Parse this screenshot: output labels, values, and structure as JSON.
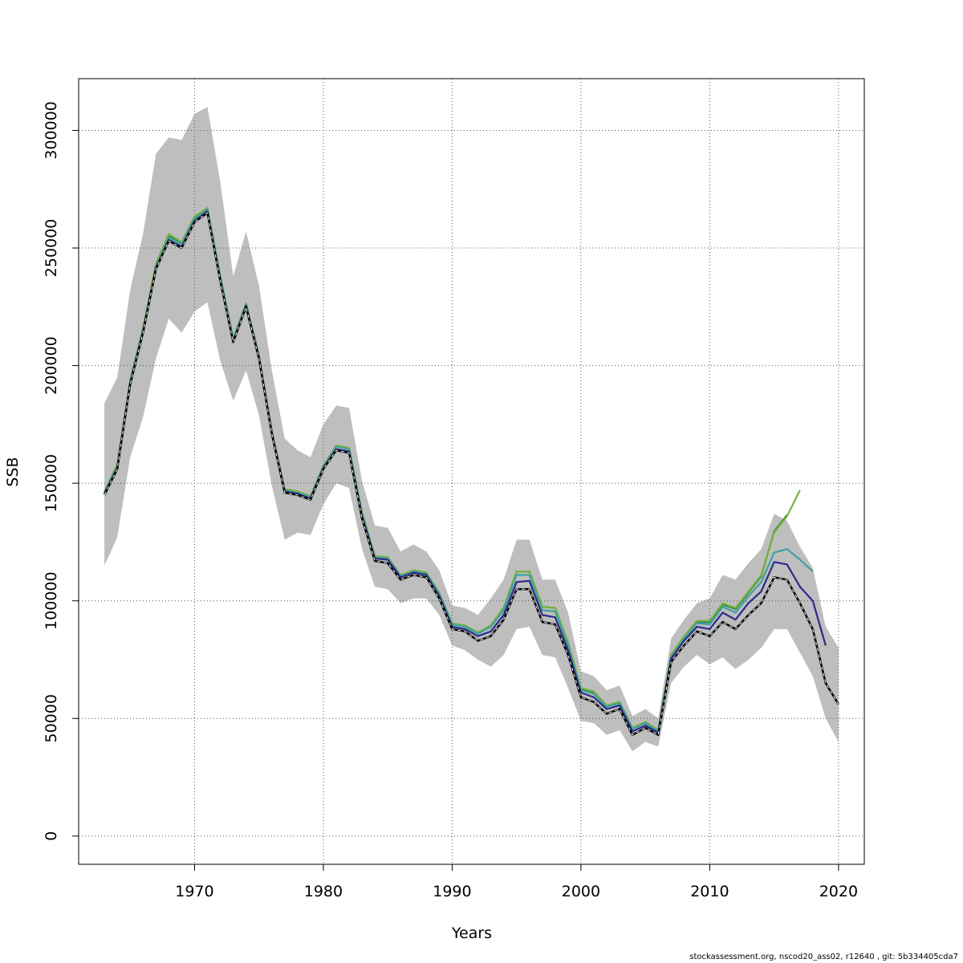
{
  "chart_data": {
    "type": "line",
    "title": "",
    "xlabel": "Years",
    "ylabel": "SSB",
    "xlim": [
      1961,
      2022
    ],
    "ylim": [
      -12000,
      322000
    ],
    "xticks": [
      1970,
      1980,
      1990,
      2000,
      2010,
      2020
    ],
    "yticks": [
      0,
      50000,
      100000,
      150000,
      200000,
      250000,
      300000
    ],
    "grid": true,
    "colors": {
      "band": "#bebebe",
      "grid": "#555555",
      "base_line": "#000000",
      "retro_lines": [
        "#2c2b8a",
        "#3ea2a0",
        "#7bb03c",
        "#1e8a4a",
        "#8fc8e4",
        "#2f3fb8",
        "#d4cf3a"
      ]
    },
    "band": {
      "x": [
        1963,
        1964,
        1965,
        1966,
        1967,
        1968,
        1969,
        1970,
        1971,
        1972,
        1973,
        1974,
        1975,
        1976,
        1977,
        1978,
        1979,
        1980,
        1981,
        1982,
        1983,
        1984,
        1985,
        1986,
        1987,
        1988,
        1989,
        1990,
        1991,
        1992,
        1993,
        1994,
        1995,
        1996,
        1997,
        1998,
        1999,
        2000,
        2001,
        2002,
        2003,
        2004,
        2005,
        2006,
        2007,
        2008,
        2009,
        2010,
        2011,
        2012,
        2013,
        2014,
        2015,
        2016,
        2017,
        2018,
        2019,
        2020
      ],
      "upper": [
        184000,
        195000,
        232000,
        256000,
        290000,
        297000,
        296000,
        307000,
        310000,
        278000,
        238000,
        257000,
        234000,
        198000,
        169000,
        164000,
        161000,
        175000,
        183000,
        182000,
        151000,
        132000,
        131000,
        121000,
        124000,
        121000,
        113000,
        98000,
        97000,
        94000,
        101000,
        109000,
        126000,
        126000,
        109000,
        109000,
        95000,
        70000,
        68000,
        62000,
        64000,
        51000,
        54000,
        50000,
        84000,
        92000,
        99000,
        101000,
        111000,
        109000,
        116000,
        122000,
        137000,
        134000,
        123000,
        114000,
        89000,
        80000
      ],
      "lower": [
        115000,
        127000,
        161000,
        178000,
        203000,
        220000,
        214000,
        223000,
        227000,
        202000,
        185000,
        198000,
        179000,
        149000,
        126000,
        129000,
        128000,
        141000,
        150000,
        148000,
        122000,
        106000,
        105000,
        99000,
        101000,
        101000,
        94000,
        81000,
        79000,
        75000,
        72000,
        77000,
        88000,
        89000,
        77000,
        76000,
        63000,
        49000,
        48000,
        43000,
        45000,
        36000,
        40000,
        38000,
        65000,
        72000,
        77000,
        73000,
        76000,
        71000,
        75000,
        80000,
        88000,
        88000,
        78000,
        68000,
        50000,
        40000
      ]
    },
    "series": [
      {
        "x": [
          1963,
          1964,
          1965,
          1966,
          1967,
          1968,
          1969,
          1970,
          1971,
          1972,
          1973,
          1974,
          1975,
          1976,
          1977,
          1978,
          1979,
          1980,
          1981,
          1982,
          1983,
          1984,
          1985,
          1986,
          1987,
          1988,
          1989,
          1990,
          1991,
          1992,
          1993,
          1994,
          1995,
          1996,
          1997,
          1998,
          1999,
          2000,
          2001,
          2002,
          2003,
          2004,
          2005,
          2006,
          2007,
          2008,
          2009,
          2010,
          2011,
          2012,
          2013,
          2014,
          2015,
          2016,
          2017,
          2018,
          2019,
          2020
        ],
        "values": [
          145000,
          156000,
          192000,
          214000,
          241000,
          253000,
          250000,
          261000,
          265000,
          236000,
          210000,
          225000,
          203000,
          171000,
          146000,
          145000,
          143000,
          156000,
          164000,
          163000,
          135000,
          117000,
          116000,
          109000,
          111000,
          110000,
          101000,
          88000,
          87000,
          83000,
          85000,
          92000,
          105000,
          105000,
          91000,
          90000,
          77000,
          59000,
          57000,
          52000,
          54000,
          43000,
          46000,
          43000,
          74000,
          81000,
          87000,
          85000,
          91000,
          88000,
          94000,
          99000,
          110000,
          109000,
          99000,
          88000,
          65000,
          56000
        ]
      },
      {
        "x": [
          1963,
          1964,
          1965,
          1966,
          1967,
          1968,
          1969,
          1970,
          1971,
          1972,
          1973,
          1974,
          1975,
          1976,
          1977,
          1978,
          1979,
          1980,
          1981,
          1982,
          1983,
          1984,
          1985,
          1986,
          1987,
          1988,
          1989,
          1990,
          1991,
          1992,
          1993,
          1994,
          1995,
          1996,
          1997,
          1998,
          1999,
          2000,
          2001,
          2002,
          2003,
          2004,
          2005,
          2006,
          2007,
          2008,
          2009,
          2010,
          2011,
          2012,
          2013,
          2014,
          2015,
          2016,
          2017,
          2018,
          2019
        ],
        "values": [
          145500,
          156500,
          192500,
          214500,
          241500,
          253500,
          250500,
          261500,
          265500,
          236500,
          210000,
          225500,
          203500,
          171500,
          146500,
          145500,
          143500,
          156500,
          164500,
          163500,
          136000,
          118000,
          117500,
          110000,
          112000,
          111000,
          102000,
          89000,
          88000,
          85000,
          87000,
          94000,
          108000,
          108500,
          94000,
          93000,
          79000,
          61000,
          59000,
          54000,
          55500,
          44500,
          47000,
          44000,
          75500,
          83000,
          89000,
          88000,
          95000,
          92000,
          99000,
          104000,
          116500,
          115500,
          106000,
          100000,
          81000
        ]
      },
      {
        "x": [
          1963,
          1964,
          1965,
          1966,
          1967,
          1968,
          1969,
          1970,
          1971,
          1972,
          1973,
          1974,
          1975,
          1976,
          1977,
          1978,
          1979,
          1980,
          1981,
          1982,
          1983,
          1984,
          1985,
          1986,
          1987,
          1988,
          1989,
          1990,
          1991,
          1992,
          1993,
          1994,
          1995,
          1996,
          1997,
          1998,
          1999,
          2000,
          2001,
          2002,
          2003,
          2004,
          2005,
          2006,
          2007,
          2008,
          2009,
          2010,
          2011,
          2012,
          2013,
          2014,
          2015,
          2016,
          2017,
          2018
        ],
        "values": [
          146000,
          157000,
          193000,
          215000,
          242000,
          254500,
          251500,
          262500,
          266500,
          237500,
          211000,
          226000,
          204000,
          172000,
          147000,
          146000,
          144000,
          157000,
          165500,
          164500,
          137000,
          118500,
          118000,
          110500,
          112500,
          111500,
          103000,
          90000,
          89000,
          86000,
          89000,
          96000,
          111000,
          111000,
          96000,
          95500,
          81000,
          62000,
          60500,
          55000,
          56500,
          45500,
          48000,
          44500,
          76000,
          84000,
          90500,
          90000,
          97500,
          95000,
          102000,
          108000,
          120500,
          122000,
          117500,
          112500
        ]
      },
      {
        "x": [
          1963,
          1964,
          1965,
          1966,
          1967,
          1968,
          1969,
          1970,
          1971,
          1972,
          1973,
          1974,
          1975,
          1976,
          1977,
          1978,
          1979,
          1980,
          1981,
          1982,
          1983,
          1984,
          1985,
          1986,
          1987,
          1988,
          1989,
          1990,
          1991,
          1992,
          1993,
          1994,
          1995,
          1996,
          1997,
          1998,
          1999,
          2000,
          2001,
          2002,
          2003,
          2004,
          2005,
          2006,
          2007,
          2008,
          2009,
          2010,
          2011,
          2012,
          2013,
          2014,
          2015,
          2016,
          2017
        ],
        "values": [
          146500,
          158000,
          194000,
          216000,
          243500,
          256000,
          252500,
          263500,
          267000,
          238500,
          211500,
          226500,
          204500,
          172500,
          147500,
          146500,
          144500,
          157500,
          166000,
          165000,
          138000,
          119000,
          118500,
          111000,
          113000,
          112000,
          103500,
          90500,
          89500,
          86500,
          89500,
          97000,
          112500,
          112500,
          97500,
          97000,
          82500,
          63000,
          61500,
          55500,
          57000,
          46000,
          48500,
          45000,
          77000,
          85000,
          91500,
          91500,
          99000,
          97000,
          104000,
          111000,
          129000,
          136000,
          147000
        ]
      },
      {
        "x": [
          1963,
          1964,
          1965,
          1966,
          1967,
          1968,
          1969,
          1970,
          1971,
          1972,
          1973,
          1974,
          1975,
          1976,
          1977,
          1978,
          1979,
          1980,
          1981,
          1982,
          1983,
          1984,
          1985,
          1986,
          1987,
          1988,
          1989,
          1990,
          1991,
          1992,
          1993,
          1994,
          1995,
          1996,
          1997,
          1998,
          1999,
          2000,
          2001,
          2002,
          2003,
          2004,
          2005,
          2006,
          2007,
          2008,
          2009,
          2010,
          2011,
          2012,
          2013,
          2014,
          2015,
          2016
        ],
        "values": [
          146000,
          157500,
          193500,
          215500,
          242500,
          255000,
          252000,
          263000,
          266000,
          238000,
          211000,
          226000,
          204000,
          172000,
          147000,
          146000,
          144000,
          157000,
          166000,
          165000,
          137500,
          119000,
          118500,
          110500,
          113000,
          112000,
          103000,
          90000,
          89500,
          86500,
          89500,
          97000,
          112500,
          112500,
          97500,
          97000,
          82000,
          62500,
          61000,
          55500,
          57000,
          46000,
          48500,
          45000,
          76500,
          84500,
          91000,
          91000,
          98500,
          96500,
          103500,
          110500,
          129500,
          136500
        ]
      }
    ]
  },
  "footnote": "stockassessment.org, nscod20_ass02, r12640 , git: 5b334405cda7"
}
